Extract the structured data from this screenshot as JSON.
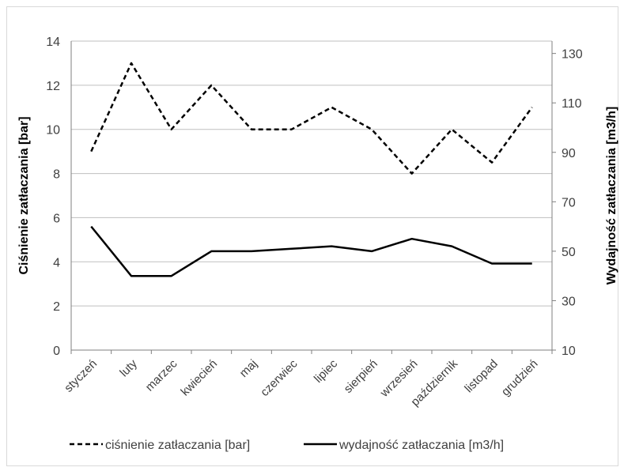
{
  "chart_data": {
    "type": "line",
    "categories": [
      "styczeń",
      "luty",
      "marzec",
      "kwiecień",
      "maj",
      "czerwiec",
      "lipiec",
      "sierpień",
      "wrzesień",
      "październik",
      "listopad",
      "grudzień"
    ],
    "series": [
      {
        "name": "ciśnienie zatłaczania [bar]",
        "axis": "left",
        "style": "dashed",
        "color": "#000000",
        "values": [
          9,
          13,
          10,
          12,
          10,
          10,
          11,
          10,
          8,
          10,
          8.5,
          11
        ]
      },
      {
        "name": "wydajność zatłaczania [m3/h]",
        "axis": "right",
        "style": "solid",
        "color": "#000000",
        "values": [
          60,
          40,
          40,
          50,
          50,
          51,
          52,
          50,
          55,
          52,
          45,
          45
        ]
      }
    ],
    "ylabel": "Ciśnienie zatłaczania [bar]",
    "y2label": "Wydajność zatłaczania [m3/h]",
    "ylim": [
      0,
      14
    ],
    "y2lim": [
      10,
      135
    ],
    "yticks": [
      "0",
      "2",
      "4",
      "6",
      "8",
      "10",
      "12",
      "14"
    ],
    "y2ticks": [
      "10",
      "30",
      "50",
      "70",
      "90",
      "110",
      "130"
    ],
    "grid": true,
    "legend": "bottom"
  }
}
